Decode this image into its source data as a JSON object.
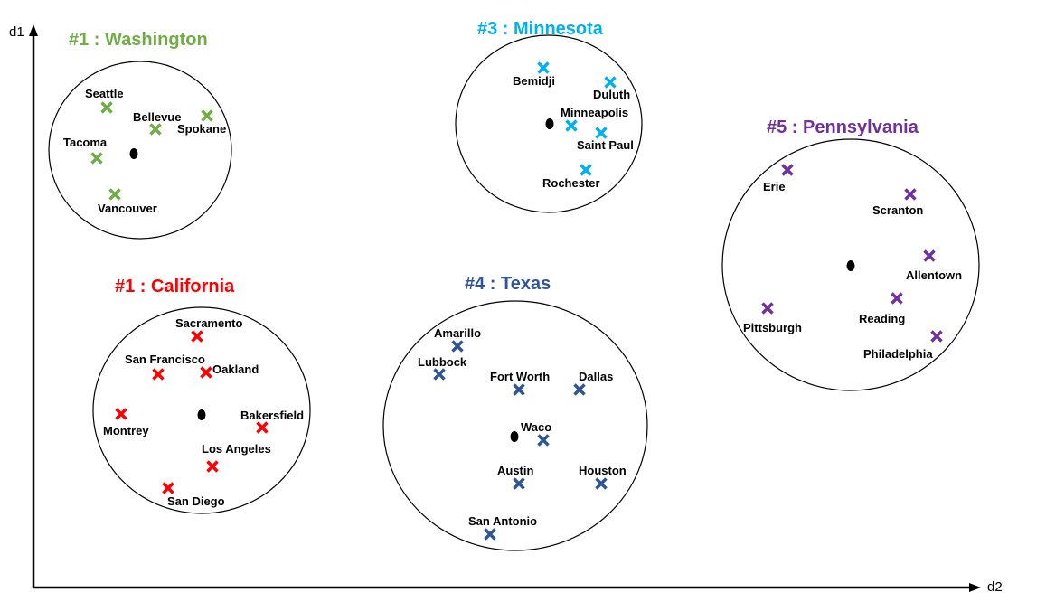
{
  "axes": {
    "x_label": "d2",
    "y_label": "d1"
  },
  "clusters": [
    {
      "id": "washington",
      "title": "#1 : Washington",
      "color": "#70ad47",
      "cities": [
        "Seattle",
        "Bellevue",
        "Spokane",
        "Tacoma",
        "Vancouver"
      ]
    },
    {
      "id": "minnesota",
      "title": "#3 : Minnesota",
      "color": "#00b0f0",
      "cities": [
        "Bemidji",
        "Duluth",
        "Minneapolis",
        "Saint Paul",
        "Rochester"
      ]
    },
    {
      "id": "pennsylvania",
      "title": "#5 : Pennsylvania",
      "color": "#7030a0",
      "cities": [
        "Erie",
        "Scranton",
        "Allentown",
        "Pittsburgh",
        "Reading",
        "Philadelphia"
      ]
    },
    {
      "id": "california",
      "title": "#1 : California",
      "color": "#ff0000",
      "cities": [
        "Sacramento",
        "San Francisco",
        "Oakland",
        "Montrey",
        "Bakersfield",
        "Los Angeles",
        "San Diego"
      ]
    },
    {
      "id": "texas",
      "title": "#4 : Texas",
      "color": "#2f5597",
      "cities": [
        "Amarillo",
        "Lubbock",
        "Fort Worth",
        "Dallas",
        "Waco",
        "Austin",
        "Houston",
        "San Antonio"
      ]
    }
  ]
}
